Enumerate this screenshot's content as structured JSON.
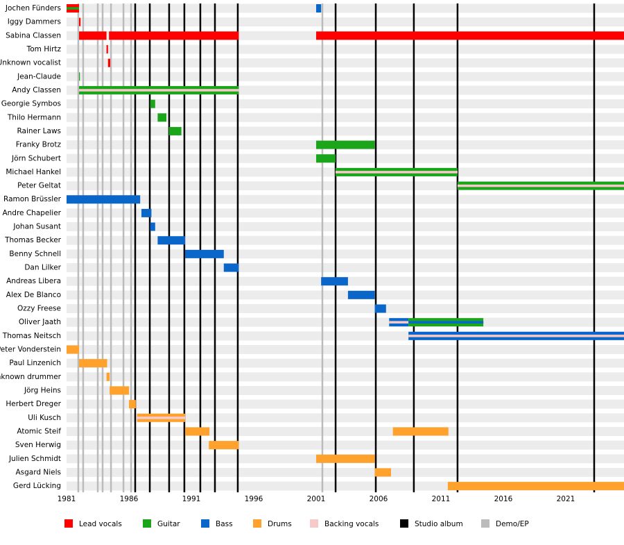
{
  "chart_data": {
    "type": "timeline",
    "xlim": [
      1981,
      2025.67
    ],
    "xticks": [
      1981,
      1986,
      1991,
      1996,
      2001,
      2006,
      2011,
      2016,
      2021
    ],
    "legend": [
      {
        "name": "Lead vocals",
        "color": "#ff0000"
      },
      {
        "name": "Guitar",
        "color": "#1aa51a"
      },
      {
        "name": "Bass",
        "color": "#0a66c8"
      },
      {
        "name": "Drums",
        "color": "#ffa22d"
      },
      {
        "name": "Backing vocals",
        "color": "#f7caca"
      },
      {
        "name": "Studio album",
        "color": "#000000"
      },
      {
        "name": "Demo/EP",
        "color": "#bbbbbb"
      }
    ],
    "studio_albums": [
      1986.5,
      1987.67,
      1989.22,
      1990.44,
      1991.72,
      1992.89,
      1994.72,
      2002.56,
      2005.78,
      2008.83,
      2012.33,
      2023.28
    ],
    "demos": [
      1981.94,
      1982.33,
      1983.5,
      1983.89,
      1984.56,
      1985.56,
      1986.17,
      2001.5
    ],
    "members": [
      {
        "name": "Jochen Fünders",
        "periods": [
          {
            "start": 1981,
            "end": 1982,
            "role": 0,
            "role2": 1
          },
          {
            "start": 2001,
            "end": 2001.4,
            "role": 2
          }
        ]
      },
      {
        "name": "Iggy Dammers",
        "periods": [
          {
            "start": 1982,
            "end": 1982.12,
            "role": 0
          }
        ]
      },
      {
        "name": "Sabina Classen",
        "periods": [
          {
            "start": 1982,
            "end": 1984.2,
            "role": 0
          },
          {
            "start": 1984.4,
            "end": 1994.8,
            "role": 0
          },
          {
            "start": 2001,
            "end": 2025.67,
            "role": 0
          }
        ]
      },
      {
        "name": "Tom Hirtz",
        "periods": [
          {
            "start": 1984.2,
            "end": 1984.32,
            "role": 0
          }
        ]
      },
      {
        "name": "Unknown vocalist",
        "periods": [
          {
            "start": 1984.32,
            "end": 1984.5,
            "role": 0
          }
        ]
      },
      {
        "name": "Jean-Claude",
        "periods": [
          {
            "start": 1982,
            "end": 1982.07,
            "role": 1
          }
        ]
      },
      {
        "name": "Andy Classen",
        "periods": [
          {
            "start": 1982,
            "end": 1994.8,
            "role": 1,
            "role2": 4
          }
        ]
      },
      {
        "name": "Georgie Symbos",
        "periods": [
          {
            "start": 1987.7,
            "end": 1988.1,
            "role": 1
          }
        ]
      },
      {
        "name": "Thilo Hermann",
        "periods": [
          {
            "start": 1988.3,
            "end": 1989,
            "role": 1
          }
        ]
      },
      {
        "name": "Rainer Laws",
        "periods": [
          {
            "start": 1989.2,
            "end": 1990.2,
            "role": 1
          }
        ]
      },
      {
        "name": "Franky Brotz",
        "periods": [
          {
            "start": 2001,
            "end": 2005.7,
            "role": 1
          }
        ]
      },
      {
        "name": "Jörn Schubert",
        "periods": [
          {
            "start": 2001,
            "end": 2002.55,
            "role": 1
          }
        ]
      },
      {
        "name": "Michael Hankel",
        "periods": [
          {
            "start": 2002.55,
            "end": 2012.33,
            "role": 1,
            "role2": 4
          }
        ]
      },
      {
        "name": "Peter Geltat",
        "periods": [
          {
            "start": 2012.33,
            "end": 2025.67,
            "role": 1,
            "role2": 4
          }
        ]
      },
      {
        "name": "Ramon Brüssler",
        "periods": [
          {
            "start": 1981,
            "end": 1986.9,
            "role": 2
          }
        ]
      },
      {
        "name": "Andre Chapelier",
        "periods": [
          {
            "start": 1987,
            "end": 1987.8,
            "role": 2
          }
        ]
      },
      {
        "name": "Johan Susant",
        "periods": [
          {
            "start": 1987.7,
            "end": 1988.1,
            "role": 2
          }
        ]
      },
      {
        "name": "Thomas Becker",
        "periods": [
          {
            "start": 1988.3,
            "end": 1990.5,
            "role": 2
          }
        ]
      },
      {
        "name": "Benny Schnell",
        "periods": [
          {
            "start": 1990.5,
            "end": 1993.6,
            "role": 2
          }
        ]
      },
      {
        "name": "Dan Lilker",
        "periods": [
          {
            "start": 1993.6,
            "end": 1994.8,
            "role": 2
          }
        ]
      },
      {
        "name": "Andreas Libera",
        "periods": [
          {
            "start": 2001.4,
            "end": 2003.55,
            "role": 2
          }
        ]
      },
      {
        "name": "Alex De Blanco",
        "periods": [
          {
            "start": 2003.55,
            "end": 2005.7,
            "role": 2
          }
        ]
      },
      {
        "name": "Ozzy Freese",
        "periods": [
          {
            "start": 2005.7,
            "end": 2006.6,
            "role": 2
          }
        ]
      },
      {
        "name": "Oliver Jaath",
        "periods": [
          {
            "start": 2006.85,
            "end": 2008.4,
            "role": 2,
            "role2": 4
          },
          {
            "start": 2008.4,
            "end": 2014.4,
            "role": 1,
            "role2": 2
          }
        ]
      },
      {
        "name": "Thomas Neitsch",
        "periods": [
          {
            "start": 2008.4,
            "end": 2025.67,
            "role": 2,
            "role2": 4
          }
        ]
      },
      {
        "name": "Peter Vonderstein",
        "periods": [
          {
            "start": 1981,
            "end": 1982,
            "role": 3
          }
        ]
      },
      {
        "name": "Paul Linzenich",
        "periods": [
          {
            "start": 1982,
            "end": 1984.25,
            "role": 3
          }
        ]
      },
      {
        "name": "Unknown drummer",
        "periods": [
          {
            "start": 1984.2,
            "end": 1984.45,
            "role": 3
          }
        ]
      },
      {
        "name": "Jörg Heins",
        "periods": [
          {
            "start": 1984.45,
            "end": 1986,
            "role": 3
          }
        ]
      },
      {
        "name": "Herbert Dreger",
        "periods": [
          {
            "start": 1986,
            "end": 1986.55,
            "role": 3
          }
        ]
      },
      {
        "name": "Uli Kusch",
        "periods": [
          {
            "start": 1986.65,
            "end": 1990.5,
            "role": 3,
            "role2": 4
          }
        ]
      },
      {
        "name": "Atomic Steif",
        "periods": [
          {
            "start": 1990.5,
            "end": 1992.45,
            "role": 3
          },
          {
            "start": 2007.15,
            "end": 2011.6,
            "role": 3
          }
        ]
      },
      {
        "name": "Sven Herwig",
        "periods": [
          {
            "start": 1992.4,
            "end": 1994.8,
            "role": 3
          }
        ]
      },
      {
        "name": "Julien Schmidt",
        "periods": [
          {
            "start": 2001,
            "end": 2005.7,
            "role": 3
          }
        ]
      },
      {
        "name": "Asgard Niels",
        "periods": [
          {
            "start": 2005.7,
            "end": 2007,
            "role": 3
          }
        ]
      },
      {
        "name": "Gerd Lücking",
        "periods": [
          {
            "start": 2011.55,
            "end": 2025.67,
            "role": 3
          }
        ]
      }
    ]
  }
}
